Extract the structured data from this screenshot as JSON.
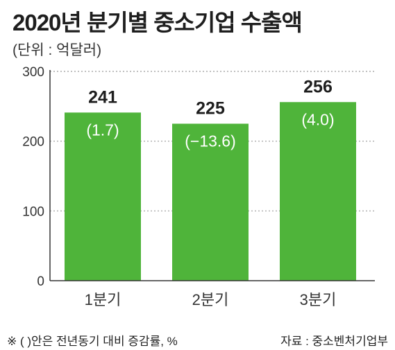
{
  "title": "2020년 분기별 중소기업 수출액",
  "unit_label": "(단위 : 억달러)",
  "footnote": "※ (  )안은 전년동기 대비 증감률, %",
  "source": "자료 : 중소벤처기업부",
  "colors": {
    "bar": "#4fb43a",
    "grid": "#999999",
    "axis": "#333333"
  },
  "chart_data": {
    "type": "bar",
    "categories": [
      "1분기",
      "2분기",
      "3분기"
    ],
    "values": [
      241,
      225,
      256
    ],
    "value_labels": [
      "241",
      "225",
      "256"
    ],
    "change_labels": [
      "(1.7)",
      "(−13.6)",
      "(4.0)"
    ],
    "yticks": [
      0,
      100,
      200,
      300
    ],
    "ylim": [
      0,
      300
    ],
    "grid": true,
    "grid_style": "dotted"
  }
}
